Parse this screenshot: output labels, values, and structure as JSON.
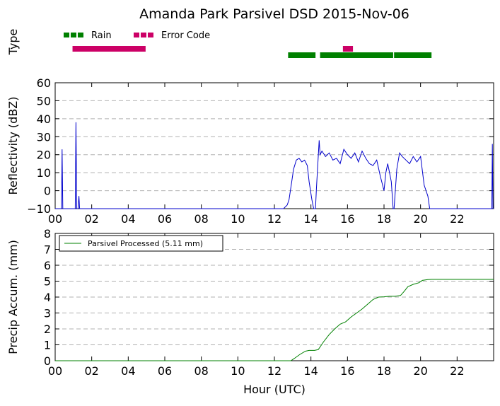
{
  "title": "Amanda Park Parsivel DSD 2015-Nov-06",
  "chart_data": [
    {
      "type": "bar",
      "panel": "type",
      "ylabel": "Type",
      "xlim": [
        0,
        24
      ],
      "legend": {
        "placement": "top-left",
        "entries": [
          {
            "label": "Rain",
            "color": "#008000"
          },
          {
            "label": "Error Code",
            "color": "#cc0066"
          }
        ]
      },
      "intervals": [
        {
          "label": "Error Code",
          "color": "#cc0066",
          "start": 0.95,
          "end": 4.95
        },
        {
          "label": "Error Code",
          "color": "#cc0066",
          "start": 15.75,
          "end": 16.3
        },
        {
          "label": "Rain",
          "color": "#008000",
          "start": 12.75,
          "end": 14.25
        },
        {
          "label": "Rain",
          "color": "#008000",
          "start": 14.5,
          "end": 18.5
        },
        {
          "label": "Rain",
          "color": "#008000",
          "start": 18.55,
          "end": 20.6
        }
      ]
    },
    {
      "type": "line",
      "panel": "reflectivity",
      "ylabel": "Reflectivity (dBZ)",
      "xlim": [
        0,
        24
      ],
      "ylim": [
        -10,
        60
      ],
      "yticks": [
        -10,
        0,
        10,
        20,
        30,
        40,
        50,
        60
      ],
      "xticks": [
        "00",
        "02",
        "04",
        "06",
        "08",
        "10",
        "12",
        "14",
        "16",
        "18",
        "20",
        "22"
      ],
      "grid": true,
      "color": "#0000cc",
      "x": [
        0,
        0.35,
        0.38,
        0.42,
        0.5,
        1.1,
        1.14,
        1.18,
        1.25,
        1.3,
        1.34,
        1.4,
        12.5,
        12.7,
        12.8,
        12.95,
        13.05,
        13.2,
        13.35,
        13.5,
        13.65,
        13.8,
        13.9,
        14.05,
        14.15,
        14.25,
        14.3,
        14.45,
        14.5,
        14.6,
        14.8,
        15.0,
        15.2,
        15.4,
        15.6,
        15.8,
        16.0,
        16.2,
        16.4,
        16.6,
        16.8,
        17.0,
        17.2,
        17.4,
        17.6,
        17.8,
        18.0,
        18.1,
        18.2,
        18.3,
        18.4,
        18.5,
        18.55,
        18.7,
        18.85,
        19.0,
        19.2,
        19.4,
        19.6,
        19.8,
        20.0,
        20.2,
        20.4,
        20.5,
        20.6,
        23.9,
        23.93,
        23.96,
        24.0
      ],
      "y": [
        -10,
        -10,
        23,
        -10,
        -10,
        -10,
        38,
        -10,
        -10,
        -3,
        -10,
        -10,
        -10,
        -8,
        -5,
        5,
        12,
        17,
        18,
        16,
        17,
        14,
        5,
        -5,
        -10,
        -10,
        1,
        28,
        20,
        22,
        19,
        21,
        17,
        18,
        15,
        23,
        20,
        18,
        21,
        16,
        22,
        18,
        15,
        14,
        17,
        8,
        0,
        10,
        15,
        10,
        5,
        -10,
        -10,
        12,
        21,
        19,
        17,
        15,
        19,
        16,
        19,
        3,
        -3,
        -10,
        -10,
        -10,
        26,
        -10,
        -10
      ]
    },
    {
      "type": "line",
      "panel": "accumulation",
      "ylabel": "Precip Accum. (mm)",
      "xlabel": "Hour (UTC)",
      "xlim": [
        0,
        24
      ],
      "ylim": [
        0,
        8
      ],
      "yticks": [
        0,
        1,
        2,
        3,
        4,
        5,
        6,
        7,
        8
      ],
      "xticks": [
        "00",
        "02",
        "04",
        "06",
        "08",
        "10",
        "12",
        "14",
        "16",
        "18",
        "20",
        "22"
      ],
      "grid": true,
      "color": "#008000",
      "legend": {
        "placement": "top-left",
        "entries": [
          {
            "label": "Parsivel Processed (5.11 mm)",
            "color": "#008000"
          }
        ]
      },
      "x": [
        0,
        12.9,
        13.1,
        13.4,
        13.7,
        13.9,
        14.2,
        14.4,
        14.7,
        15.0,
        15.3,
        15.6,
        15.9,
        16.2,
        16.5,
        16.8,
        17.1,
        17.4,
        17.7,
        18.0,
        18.3,
        18.6,
        18.9,
        19.1,
        19.3,
        19.6,
        19.9,
        20.1,
        20.4,
        20.6,
        21.0,
        24.0
      ],
      "y": [
        0,
        0,
        0.15,
        0.4,
        0.6,
        0.65,
        0.65,
        0.7,
        1.2,
        1.65,
        2.0,
        2.3,
        2.45,
        2.75,
        3.0,
        3.25,
        3.55,
        3.85,
        4.0,
        4.02,
        4.05,
        4.05,
        4.1,
        4.35,
        4.65,
        4.8,
        4.9,
        5.05,
        5.1,
        5.11,
        5.11,
        5.11
      ]
    }
  ]
}
